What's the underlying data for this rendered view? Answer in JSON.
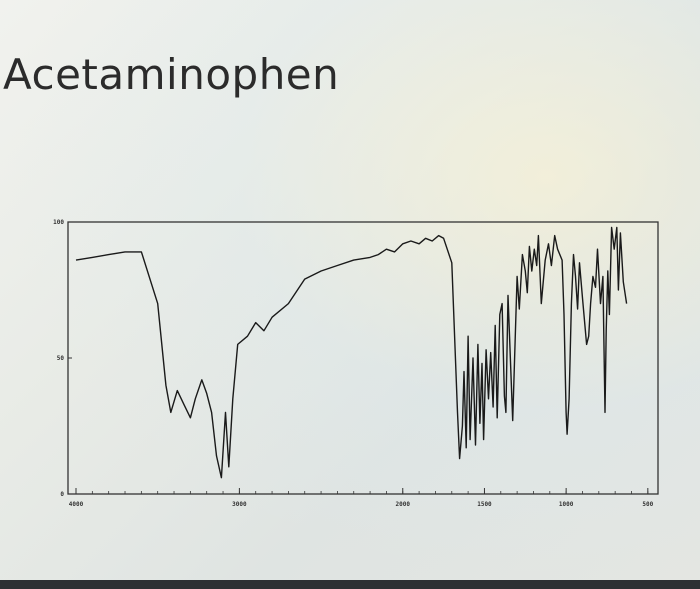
{
  "page": {
    "title": "Acetaminophen"
  },
  "chart_data": {
    "type": "line",
    "title": "",
    "xlabel": "",
    "ylabel": "",
    "xlim": [
      4000,
      450
    ],
    "ylim": [
      0,
      100
    ],
    "x_ticks": [
      {
        "value": 4000,
        "label": "4000"
      },
      {
        "value": 3000,
        "label": "3000"
      },
      {
        "value": 2000,
        "label": "2000"
      },
      {
        "value": 1500,
        "label": "1500"
      },
      {
        "value": 1000,
        "label": "1000"
      },
      {
        "value": 500,
        "label": "500"
      }
    ],
    "y_ticks": [
      {
        "value": 100,
        "label": "100"
      },
      {
        "value": 50,
        "label": "50"
      },
      {
        "value": 0,
        "label": "0"
      }
    ],
    "grid": false,
    "series": [
      {
        "color": "#1a1a1a",
        "points": [
          [
            4000,
            86
          ],
          [
            3900,
            87
          ],
          [
            3800,
            88
          ],
          [
            3700,
            89
          ],
          [
            3600,
            89
          ],
          [
            3500,
            70
          ],
          [
            3450,
            40
          ],
          [
            3420,
            30
          ],
          [
            3380,
            38
          ],
          [
            3340,
            33
          ],
          [
            3300,
            28
          ],
          [
            3270,
            35
          ],
          [
            3230,
            42
          ],
          [
            3200,
            37
          ],
          [
            3170,
            30
          ],
          [
            3140,
            14
          ],
          [
            3110,
            6
          ],
          [
            3085,
            30
          ],
          [
            3065,
            10
          ],
          [
            3040,
            35
          ],
          [
            3010,
            55
          ],
          [
            2950,
            58
          ],
          [
            2900,
            63
          ],
          [
            2850,
            60
          ],
          [
            2800,
            65
          ],
          [
            2700,
            70
          ],
          [
            2600,
            79
          ],
          [
            2500,
            82
          ],
          [
            2400,
            84
          ],
          [
            2300,
            86
          ],
          [
            2200,
            87
          ],
          [
            2150,
            88
          ],
          [
            2100,
            90
          ],
          [
            2050,
            89
          ],
          [
            2000,
            92
          ],
          [
            1950,
            93
          ],
          [
            1900,
            92
          ],
          [
            1860,
            94
          ],
          [
            1820,
            93
          ],
          [
            1780,
            95
          ],
          [
            1750,
            94
          ],
          [
            1700,
            85
          ],
          [
            1665,
            30
          ],
          [
            1652,
            13
          ],
          [
            1635,
            25
          ],
          [
            1625,
            45
          ],
          [
            1612,
            17
          ],
          [
            1600,
            58
          ],
          [
            1588,
            20
          ],
          [
            1570,
            50
          ],
          [
            1555,
            18
          ],
          [
            1540,
            55
          ],
          [
            1528,
            26
          ],
          [
            1515,
            48
          ],
          [
            1505,
            20
          ],
          [
            1490,
            53
          ],
          [
            1475,
            35
          ],
          [
            1462,
            52
          ],
          [
            1447,
            32
          ],
          [
            1434,
            62
          ],
          [
            1422,
            28
          ],
          [
            1406,
            66
          ],
          [
            1392,
            70
          ],
          [
            1378,
            36
          ],
          [
            1369,
            30
          ],
          [
            1356,
            73
          ],
          [
            1327,
            27
          ],
          [
            1300,
            80
          ],
          [
            1287,
            68
          ],
          [
            1268,
            88
          ],
          [
            1250,
            82
          ],
          [
            1238,
            74
          ],
          [
            1225,
            91
          ],
          [
            1210,
            82
          ],
          [
            1195,
            90
          ],
          [
            1180,
            84
          ],
          [
            1170,
            95
          ],
          [
            1152,
            70
          ],
          [
            1128,
            86
          ],
          [
            1108,
            92
          ],
          [
            1090,
            84
          ],
          [
            1070,
            95
          ],
          [
            1052,
            90
          ],
          [
            1025,
            86
          ],
          [
            1013,
            66
          ],
          [
            1000,
            30
          ],
          [
            994,
            22
          ],
          [
            982,
            35
          ],
          [
            968,
            70
          ],
          [
            955,
            88
          ],
          [
            943,
            80
          ],
          [
            930,
            68
          ],
          [
            918,
            85
          ],
          [
            900,
            72
          ],
          [
            875,
            55
          ],
          [
            862,
            58
          ],
          [
            850,
            70
          ],
          [
            836,
            80
          ],
          [
            820,
            76
          ],
          [
            808,
            90
          ],
          [
            790,
            70
          ],
          [
            775,
            80
          ],
          [
            762,
            30
          ],
          [
            755,
            60
          ],
          [
            745,
            82
          ],
          [
            735,
            66
          ],
          [
            722,
            98
          ],
          [
            706,
            90
          ],
          [
            690,
            98
          ],
          [
            680,
            75
          ],
          [
            668,
            96
          ],
          [
            650,
            78
          ],
          [
            630,
            70
          ]
        ]
      }
    ]
  }
}
